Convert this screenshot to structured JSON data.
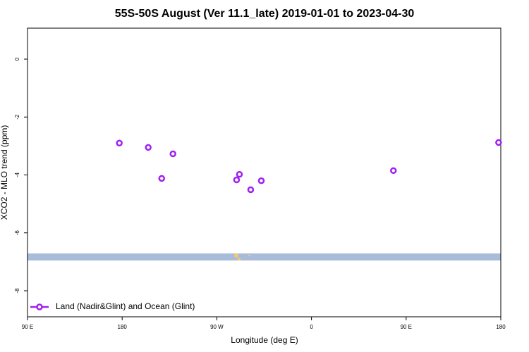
{
  "chart_data": {
    "type": "scatter",
    "title": "55S-50S August (Ver 11.1_late)   2019-01-01 to 2023-04-30",
    "x_label": "Longitude (deg E)",
    "y_label": "XCO2 - MLO trend (ppm)",
    "x": [
      177.3,
      204.8,
      217.6,
      228.3,
      288.8,
      291.5,
      302.2,
      312.3,
      437.9,
      537.9
    ],
    "series": [
      {
        "name": "Land (Nadir&Glint) and Ocean (Glint)",
        "color": "#a020f0",
        "values": [
          -2.9,
          -3.05,
          -4.12,
          -3.27,
          -4.17,
          -3.98,
          -4.51,
          -4.2,
          -3.85,
          -2.88
        ]
      }
    ],
    "xlim": [
      90,
      540
    ],
    "xticks": [
      {
        "value": 90,
        "label": "90 E"
      },
      180,
      {
        "value": 270,
        "label": "90 W"
      },
      {
        "value": 360,
        "label": "0"
      },
      {
        "value": 450,
        "label": "90 E"
      },
      {
        "value": 540,
        "label": "180"
      }
    ],
    "ylim": [
      -8.9,
      1.07
    ],
    "yticks": [
      0,
      -2,
      -4,
      -6,
      -8
    ],
    "legend": "bottom-left"
  }
}
